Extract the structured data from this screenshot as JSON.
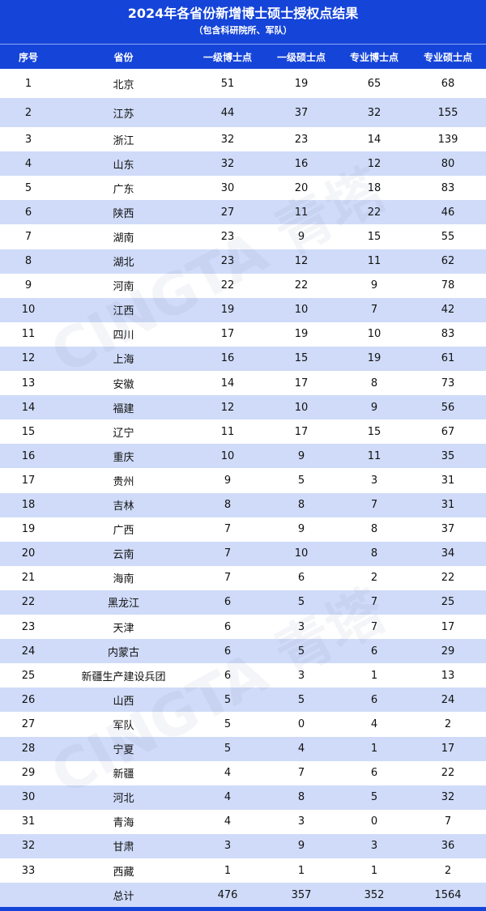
{
  "title": "2024年各省份新增博士硕士授权点结果",
  "subtitle": "（包含科研院所、军队）",
  "columns": [
    "序号",
    "省份",
    "一级博士点",
    "一级硕士点",
    "专业博士点",
    "专业硕士点"
  ],
  "rows": [
    [
      "1",
      "北京",
      "51",
      "19",
      "65",
      "68"
    ],
    [
      "2",
      "江苏",
      "44",
      "37",
      "32",
      "155"
    ],
    [
      "3",
      "浙江",
      "32",
      "23",
      "14",
      "139"
    ],
    [
      "4",
      "山东",
      "32",
      "16",
      "12",
      "80"
    ],
    [
      "5",
      "广东",
      "30",
      "20",
      "18",
      "83"
    ],
    [
      "6",
      "陕西",
      "27",
      "11",
      "22",
      "46"
    ],
    [
      "7",
      "湖南",
      "23",
      "9",
      "15",
      "55"
    ],
    [
      "8",
      "湖北",
      "23",
      "12",
      "11",
      "62"
    ],
    [
      "9",
      "河南",
      "22",
      "22",
      "9",
      "78"
    ],
    [
      "10",
      "江西",
      "19",
      "10",
      "7",
      "42"
    ],
    [
      "11",
      "四川",
      "17",
      "19",
      "10",
      "83"
    ],
    [
      "12",
      "上海",
      "16",
      "15",
      "19",
      "61"
    ],
    [
      "13",
      "安徽",
      "14",
      "17",
      "8",
      "73"
    ],
    [
      "14",
      "福建",
      "12",
      "10",
      "9",
      "56"
    ],
    [
      "15",
      "辽宁",
      "11",
      "17",
      "15",
      "67"
    ],
    [
      "16",
      "重庆",
      "10",
      "9",
      "11",
      "35"
    ],
    [
      "17",
      "贵州",
      "9",
      "5",
      "3",
      "31"
    ],
    [
      "18",
      "吉林",
      "8",
      "8",
      "7",
      "31"
    ],
    [
      "19",
      "广西",
      "7",
      "9",
      "8",
      "37"
    ],
    [
      "20",
      "云南",
      "7",
      "10",
      "8",
      "34"
    ],
    [
      "21",
      "海南",
      "7",
      "6",
      "2",
      "22"
    ],
    [
      "22",
      "黑龙江",
      "6",
      "5",
      "7",
      "25"
    ],
    [
      "23",
      "天津",
      "6",
      "3",
      "7",
      "17"
    ],
    [
      "24",
      "内蒙古",
      "6",
      "5",
      "6",
      "29"
    ],
    [
      "25",
      "新疆生产建设兵团",
      "6",
      "3",
      "1",
      "13"
    ],
    [
      "26",
      "山西",
      "5",
      "5",
      "6",
      "24"
    ],
    [
      "27",
      "军队",
      "5",
      "0",
      "4",
      "2"
    ],
    [
      "28",
      "宁夏",
      "5",
      "4",
      "1",
      "17"
    ],
    [
      "29",
      "新疆",
      "4",
      "7",
      "6",
      "22"
    ],
    [
      "30",
      "河北",
      "4",
      "8",
      "5",
      "32"
    ],
    [
      "31",
      "青海",
      "4",
      "3",
      "0",
      "7"
    ],
    [
      "32",
      "甘肃",
      "3",
      "9",
      "3",
      "36"
    ],
    [
      "33",
      "西藏",
      "1",
      "1",
      "1",
      "2"
    ]
  ],
  "total": [
    "",
    "总计",
    "476",
    "357",
    "352",
    "1564"
  ],
  "watermark": "CINGTA 青塔",
  "colors": {
    "header": "#1544d9",
    "stripe": "#cfdbf8"
  }
}
